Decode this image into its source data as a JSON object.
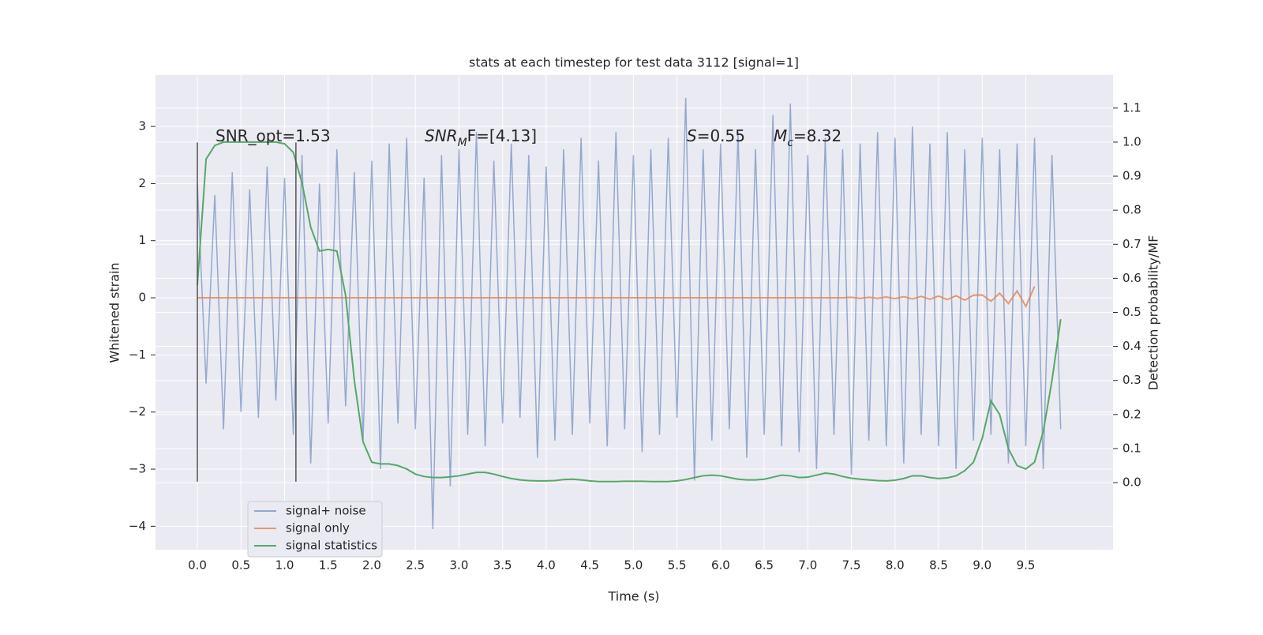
{
  "chart_data": {
    "type": "line",
    "title": "stats at each timestep for test data 3112 [signal=1]",
    "xlabel": "Time (s)",
    "ylabel": "Whitened strain",
    "y2label": "Detection probability/MF",
    "xlim": [
      -0.48,
      10.5
    ],
    "ylim": [
      -4.41,
      3.9
    ],
    "y2lim": [
      -0.197,
      1.197
    ],
    "grid": true,
    "legend": "lower left",
    "xticks": [
      {
        "value": 0,
        "label": "0.0"
      },
      0.5,
      {
        "value": 1,
        "label": "1.0"
      },
      1.5,
      {
        "value": 2,
        "label": "2.0"
      },
      2.5,
      {
        "value": 3,
        "label": "3.0"
      },
      3.5,
      {
        "value": 4,
        "label": "4.0"
      },
      4.5,
      {
        "value": 5,
        "label": "5.0"
      },
      5.5,
      {
        "value": 6,
        "label": "6.0"
      },
      6.5,
      {
        "value": 7,
        "label": "7.0"
      },
      7.5,
      {
        "value": 8,
        "label": "8.0"
      },
      8.5,
      {
        "value": 9,
        "label": "9.0"
      },
      9.5
    ],
    "yticks": [
      {
        "value": -4,
        "label": "−4"
      },
      {
        "value": -3,
        "label": "−3"
      },
      {
        "value": -2,
        "label": "−2"
      },
      {
        "value": -1,
        "label": "−1"
      },
      0,
      1,
      2,
      3
    ],
    "y2ticks": [
      {
        "value": 0,
        "label": "0.0"
      },
      0.1,
      0.2,
      0.3,
      0.4,
      0.5,
      0.6,
      0.7,
      0.8,
      0.9,
      {
        "value": 1,
        "label": "1.0"
      },
      1.1
    ],
    "markers": {
      "x": [
        0,
        1.13
      ],
      "ymin": -3.22,
      "ymax": 2.72,
      "color": "#555555"
    },
    "annotations": [
      {
        "text": "SNR_opt=1.53"
      },
      {
        "math": "SNR",
        "sub": "M",
        "text": "F=[4.13]"
      },
      {
        "math": "S",
        "text": "=0.55"
      },
      {
        "math": "M",
        "sub": "c",
        "text": "=8.32"
      }
    ],
    "x": [
      0.0,
      0.1,
      0.2,
      0.3,
      0.4,
      0.5,
      0.6,
      0.7,
      0.8,
      0.9,
      1.0,
      1.1,
      1.2,
      1.3,
      1.4,
      1.5,
      1.6,
      1.7,
      1.8,
      1.9,
      2.0,
      2.1,
      2.2,
      2.3,
      2.4,
      2.5,
      2.6,
      2.7,
      2.8,
      2.9,
      3.0,
      3.1,
      3.2,
      3.3,
      3.4,
      3.5,
      3.6,
      3.7,
      3.8,
      3.9,
      4.0,
      4.1,
      4.2,
      4.3,
      4.4,
      4.5,
      4.6,
      4.7,
      4.8,
      4.9,
      5.0,
      5.1,
      5.2,
      5.3,
      5.4,
      5.5,
      5.6,
      5.7,
      5.8,
      5.9,
      6.0,
      6.1,
      6.2,
      6.3,
      6.4,
      6.5,
      6.6,
      6.7,
      6.8,
      6.9,
      7.0,
      7.1,
      7.2,
      7.3,
      7.4,
      7.5,
      7.6,
      7.7,
      7.8,
      7.9,
      8.0,
      8.1,
      8.2,
      8.3,
      8.4,
      8.5,
      8.6,
      8.7,
      8.8,
      8.9,
      9.0,
      9.1,
      9.2,
      9.3,
      9.4,
      9.5,
      9.6,
      9.7,
      9.8,
      9.9
    ],
    "series": [
      {
        "name": "signal+ noise",
        "color": "#4c72b0",
        "opacity": 0.55,
        "values": [
          2.0,
          -1.5,
          1.8,
          -2.3,
          2.2,
          -2.0,
          1.9,
          -2.1,
          2.3,
          -1.8,
          2.1,
          -2.4,
          2.5,
          -2.9,
          2.0,
          -2.2,
          2.6,
          -1.9,
          2.2,
          -2.5,
          2.4,
          -3.0,
          2.7,
          -2.2,
          2.8,
          -2.3,
          2.1,
          -4.05,
          2.5,
          -3.3,
          2.6,
          -2.4,
          2.9,
          -2.6,
          2.4,
          -2.2,
          2.7,
          -2.1,
          2.5,
          -2.8,
          2.3,
          -2.5,
          2.6,
          -2.4,
          2.8,
          -2.2,
          2.4,
          -2.6,
          2.9,
          -2.3,
          2.5,
          -2.7,
          2.6,
          -2.4,
          2.8,
          -2.1,
          3.5,
          -3.2,
          2.6,
          -2.5,
          2.7,
          -2.3,
          2.9,
          -2.8,
          2.6,
          -2.4,
          3.2,
          -2.6,
          3.4,
          -2.7,
          2.5,
          -3.0,
          2.8,
          -2.4,
          2.6,
          -3.1,
          2.7,
          -2.5,
          2.9,
          -2.6,
          2.8,
          -2.9,
          3.0,
          -2.4,
          2.7,
          -2.6,
          2.9,
          -3.0,
          2.6,
          -2.5,
          2.8,
          -2.4,
          2.6,
          -2.9,
          2.7,
          -2.6,
          2.8,
          -3.0,
          2.5,
          -2.3
        ]
      },
      {
        "name": "signal only",
        "color": "#dd8452",
        "opacity": 0.8,
        "values": [
          0,
          0,
          0,
          0,
          0,
          0,
          0,
          0,
          0,
          0,
          0,
          0,
          0,
          0,
          0,
          0,
          0,
          0,
          0,
          0,
          0,
          0,
          0,
          0,
          0,
          0,
          0,
          0,
          0,
          0,
          0,
          0,
          0,
          0,
          0,
          0,
          0,
          0,
          0,
          0,
          0,
          0,
          0,
          0,
          0,
          0,
          0,
          0,
          0,
          0,
          0,
          0,
          0,
          0,
          0,
          0,
          0,
          0,
          0,
          0,
          0,
          0,
          0,
          0,
          0,
          0,
          0,
          0,
          0,
          0,
          0,
          0,
          0,
          0,
          0,
          0.01,
          -0.01,
          0.01,
          -0.01,
          0.015,
          -0.015,
          0.02,
          -0.02,
          0.025,
          -0.025,
          0.03,
          -0.03,
          0.035,
          -0.04,
          0.045,
          0.05,
          -0.06,
          0.08,
          -0.1,
          0.12,
          -0.15,
          0.2,
          null,
          null,
          null
        ]
      },
      {
        "name": "signal statistics",
        "color": "#55a868",
        "opacity": 1,
        "axis": "y2",
        "values": [
          0.58,
          0.95,
          0.99,
          1.0,
          1.0,
          1.0,
          1.0,
          1.0,
          1.0,
          1.0,
          0.995,
          0.97,
          0.88,
          0.75,
          0.68,
          0.685,
          0.68,
          0.55,
          0.3,
          0.12,
          0.06,
          0.055,
          0.055,
          0.05,
          0.04,
          0.025,
          0.018,
          0.015,
          0.015,
          0.017,
          0.02,
          0.025,
          0.03,
          0.03,
          0.025,
          0.018,
          0.012,
          0.008,
          0.006,
          0.005,
          0.005,
          0.006,
          0.009,
          0.01,
          0.008,
          0.005,
          0.003,
          0.003,
          0.003,
          0.004,
          0.004,
          0.004,
          0.003,
          0.003,
          0.003,
          0.005,
          0.009,
          0.015,
          0.02,
          0.022,
          0.02,
          0.015,
          0.01,
          0.008,
          0.008,
          0.01,
          0.016,
          0.022,
          0.02,
          0.015,
          0.016,
          0.022,
          0.028,
          0.025,
          0.018,
          0.013,
          0.01,
          0.008,
          0.006,
          0.005,
          0.007,
          0.012,
          0.02,
          0.02,
          0.015,
          0.012,
          0.014,
          0.02,
          0.035,
          0.06,
          0.13,
          0.24,
          0.2,
          0.1,
          0.05,
          0.04,
          0.06,
          0.15,
          0.3,
          0.48
        ]
      }
    ]
  }
}
